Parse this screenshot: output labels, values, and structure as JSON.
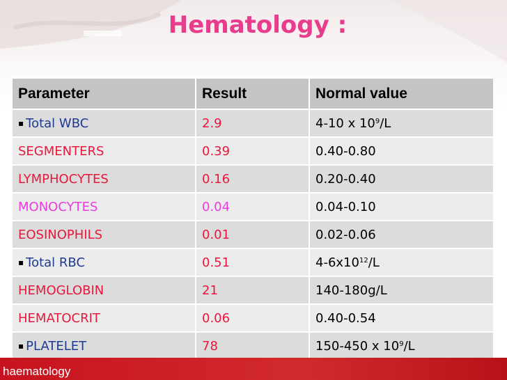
{
  "title": "Hematology :",
  "table": {
    "headers": {
      "parameter": "Parameter",
      "result": "Result",
      "normal": "Normal value"
    },
    "rows": [
      {
        "parameter": "Total WBC",
        "param_color": "#1f3a93",
        "bullet": true,
        "result": "2.9",
        "result_color": "#e8173b",
        "normal_pre": "4-10 x 10",
        "normal_sup": "9",
        "normal_post": "/L"
      },
      {
        "parameter": "SEGMENTERS",
        "param_color": "#e8173b",
        "bullet": false,
        "result": "0.39",
        "result_color": "#e8173b",
        "normal_pre": "0.40-0.80",
        "normal_sup": "",
        "normal_post": ""
      },
      {
        "parameter": "LYMPHOCYTES",
        "param_color": "#e8173b",
        "bullet": false,
        "result": "0.16",
        "result_color": "#e8173b",
        "normal_pre": "0.20-0.40",
        "normal_sup": "",
        "normal_post": ""
      },
      {
        "parameter": "MONOCYTES",
        "param_color": "#e83ce0",
        "bullet": false,
        "result": "0.04",
        "result_color": "#e83ce0",
        "normal_pre": "0.04-0.10",
        "normal_sup": "",
        "normal_post": ""
      },
      {
        "parameter": "EOSINOPHILS",
        "param_color": "#e8173b",
        "bullet": false,
        "result": "0.01",
        "result_color": "#e8173b",
        "normal_pre": "0.02-0.06",
        "normal_sup": "",
        "normal_post": ""
      },
      {
        "parameter": "Total RBC",
        "param_color": "#1f3a93",
        "bullet": true,
        "result": "0.51",
        "result_color": "#e8173b",
        "normal_pre": "4-6x10",
        "normal_sup": "12",
        "normal_post": "/L"
      },
      {
        "parameter": "HEMOGLOBIN",
        "param_color": "#e8173b",
        "bullet": false,
        "result": "21",
        "result_color": "#e8173b",
        "normal_pre": "140-180g/L",
        "normal_sup": "",
        "normal_post": ""
      },
      {
        "parameter": "HEMATOCRIT",
        "param_color": "#e8173b",
        "bullet": false,
        "result": "0.06",
        "result_color": "#e8173b",
        "normal_pre": "0.40-0.54",
        "normal_sup": "",
        "normal_post": ""
      },
      {
        "parameter": "PLATELET",
        "param_color": "#1f3a93",
        "bullet": true,
        "result": "78",
        "result_color": "#e8173b",
        "normal_pre": "150-450 x 10",
        "normal_sup": "9",
        "normal_post": "/L"
      }
    ]
  },
  "footer": {
    "label": "haematology",
    "color": "#c7131f"
  },
  "colors": {
    "title": "#e83c8c",
    "header_bg": "#c4c4c4",
    "row_odd": "#dcdcdc",
    "row_even": "#ececec"
  }
}
